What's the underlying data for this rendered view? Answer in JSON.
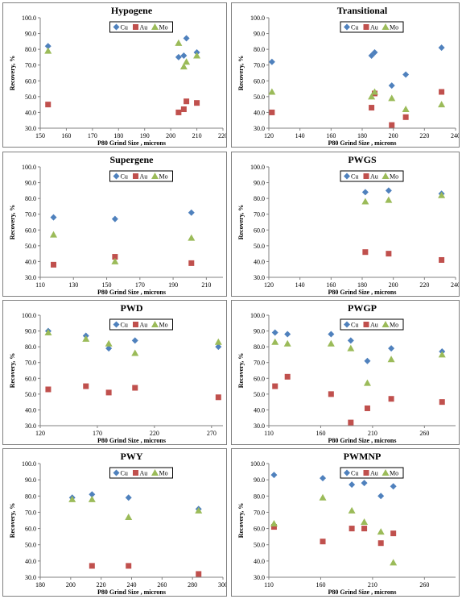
{
  "series_style": {
    "Cu": {
      "color": "#4f81bd",
      "marker": "diamond"
    },
    "Au": {
      "color": "#c0504d",
      "marker": "square"
    },
    "Mo": {
      "color": "#9bbb59",
      "marker": "triangle"
    }
  },
  "chart_data": [
    {
      "type": "scatter",
      "title": "Hypogene",
      "xlabel": "P80 Grind Size , microns",
      "ylabel": "Recovery, %",
      "xlim": [
        150,
        220
      ],
      "xticks": [
        150,
        160,
        170,
        180,
        190,
        200,
        210,
        220
      ],
      "ylim": [
        30,
        100
      ],
      "yticks": [
        30.0,
        40.0,
        50.0,
        60.0,
        70.0,
        80.0,
        90.0,
        100.0
      ],
      "legend": [
        "Cu",
        "Au",
        "Mo"
      ],
      "series": [
        {
          "name": "Cu",
          "points": [
            [
              153,
              82
            ],
            [
              203,
              75
            ],
            [
              205,
              76
            ],
            [
              206,
              87
            ],
            [
              210,
              78
            ]
          ]
        },
        {
          "name": "Au",
          "points": [
            [
              153,
              45
            ],
            [
              203,
              40
            ],
            [
              205,
              42
            ],
            [
              206,
              47
            ],
            [
              210,
              46
            ]
          ]
        },
        {
          "name": "Mo",
          "points": [
            [
              153,
              79
            ],
            [
              203,
              84
            ],
            [
              205,
              69
            ],
            [
              206,
              72
            ],
            [
              210,
              76
            ]
          ]
        }
      ]
    },
    {
      "type": "scatter",
      "title": "Transitional",
      "xlabel": "P80 Grind Size , microns",
      "ylabel": "Recovery, %",
      "xlim": [
        120,
        240
      ],
      "xticks": [
        120,
        140,
        160,
        180,
        200,
        220,
        240
      ],
      "ylim": [
        30,
        100
      ],
      "yticks": [
        30.0,
        40.0,
        50.0,
        60.0,
        70.0,
        80.0,
        90.0,
        100.0
      ],
      "legend": [
        "Cu",
        "Au",
        "Mo"
      ],
      "series": [
        {
          "name": "Cu",
          "points": [
            [
              122,
              72
            ],
            [
              186,
              76
            ],
            [
              188,
              78
            ],
            [
              199,
              57
            ],
            [
              208,
              64
            ],
            [
              231,
              81
            ]
          ]
        },
        {
          "name": "Au",
          "points": [
            [
              122,
              40
            ],
            [
              186,
              43
            ],
            [
              188,
              52
            ],
            [
              199,
              32
            ],
            [
              208,
              37
            ],
            [
              231,
              53
            ]
          ]
        },
        {
          "name": "Mo",
          "points": [
            [
              122,
              53
            ],
            [
              186,
              50
            ],
            [
              188,
              53
            ],
            [
              199,
              49
            ],
            [
              208,
              42
            ],
            [
              231,
              45
            ]
          ]
        }
      ]
    },
    {
      "type": "scatter",
      "title": "Supergene",
      "xlabel": "P80 Grind Size , microns",
      "ylabel": "Recovery, %",
      "xlim": [
        110,
        220
      ],
      "xticks": [
        110,
        130,
        150,
        170,
        190,
        210
      ],
      "ylim": [
        30,
        100
      ],
      "yticks": [
        30.0,
        40.0,
        50.0,
        60.0,
        70.0,
        80.0,
        90.0,
        100.0
      ],
      "legend": [
        "Cu",
        "Au",
        "Mo"
      ],
      "series": [
        {
          "name": "Cu",
          "points": [
            [
              118,
              68
            ],
            [
              155,
              67
            ],
            [
              201,
              71
            ]
          ]
        },
        {
          "name": "Au",
          "points": [
            [
              118,
              38
            ],
            [
              155,
              43
            ],
            [
              201,
              39
            ]
          ]
        },
        {
          "name": "Mo",
          "points": [
            [
              118,
              57
            ],
            [
              155,
              40
            ],
            [
              201,
              55
            ]
          ]
        }
      ]
    },
    {
      "type": "scatter",
      "title": "PWGS",
      "xlabel": "P80 Grind Size , microns",
      "ylabel": "Recovery, %",
      "xlim": [
        120,
        240
      ],
      "xticks": [
        120,
        140,
        160,
        180,
        200,
        220,
        240
      ],
      "ylim": [
        30,
        100
      ],
      "yticks": [
        30.0,
        40.0,
        50.0,
        60.0,
        70.0,
        80.0,
        90.0,
        100.0
      ],
      "legend": [
        "Cu",
        "Au",
        "Mo"
      ],
      "series": [
        {
          "name": "Cu",
          "points": [
            [
              182,
              84
            ],
            [
              197,
              85
            ],
            [
              231,
              83
            ]
          ]
        },
        {
          "name": "Au",
          "points": [
            [
              182,
              46
            ],
            [
              197,
              45
            ],
            [
              231,
              41
            ]
          ]
        },
        {
          "name": "Mo",
          "points": [
            [
              182,
              78
            ],
            [
              197,
              79
            ],
            [
              231,
              82
            ]
          ]
        }
      ]
    },
    {
      "type": "scatter",
      "title": "PWD",
      "xlabel": "P80 Grind Size , microns",
      "ylabel": "Recovery, %",
      "xlim": [
        120,
        280
      ],
      "xticks": [
        120,
        170,
        220,
        270
      ],
      "ylim": [
        30,
        100
      ],
      "yticks": [
        30.0,
        40.0,
        50.0,
        60.0,
        70.0,
        80.0,
        90.0,
        100.0
      ],
      "legend": [
        "Cu",
        "Au",
        "Mo"
      ],
      "series": [
        {
          "name": "Cu",
          "points": [
            [
              127,
              90
            ],
            [
              160,
              87
            ],
            [
              180,
              79
            ],
            [
              203,
              84
            ],
            [
              276,
              80
            ]
          ]
        },
        {
          "name": "Au",
          "points": [
            [
              127,
              53
            ],
            [
              160,
              55
            ],
            [
              180,
              51
            ],
            [
              203,
              54
            ],
            [
              276,
              48
            ]
          ]
        },
        {
          "name": "Mo",
          "points": [
            [
              127,
              89
            ],
            [
              160,
              85
            ],
            [
              180,
              82
            ],
            [
              203,
              76
            ],
            [
              276,
              83
            ]
          ]
        }
      ]
    },
    {
      "type": "scatter",
      "title": "PWGP",
      "xlabel": "P80 Grind Size , microns",
      "ylabel": "Recovery, %",
      "xlim": [
        110,
        290
      ],
      "xticks": [
        110,
        160,
        210,
        260
      ],
      "ylim": [
        30,
        100
      ],
      "yticks": [
        30.0,
        40.0,
        50.0,
        60.0,
        70.0,
        80.0,
        90.0,
        100.0
      ],
      "legend": [
        "Cu",
        "Au",
        "Mo"
      ],
      "series": [
        {
          "name": "Cu",
          "points": [
            [
              116,
              89
            ],
            [
              128,
              88
            ],
            [
              170,
              88
            ],
            [
              189,
              84
            ],
            [
              205,
              71
            ],
            [
              228,
              79
            ],
            [
              277,
              77
            ]
          ]
        },
        {
          "name": "Au",
          "points": [
            [
              116,
              55
            ],
            [
              128,
              61
            ],
            [
              170,
              50
            ],
            [
              189,
              32
            ],
            [
              205,
              41
            ],
            [
              228,
              47
            ],
            [
              277,
              45
            ]
          ]
        },
        {
          "name": "Mo",
          "points": [
            [
              116,
              83
            ],
            [
              128,
              82
            ],
            [
              170,
              82
            ],
            [
              189,
              79
            ],
            [
              205,
              57
            ],
            [
              228,
              72
            ],
            [
              277,
              75
            ]
          ]
        }
      ]
    },
    {
      "type": "scatter",
      "title": "PWY",
      "xlabel": "P80 Grind Size , microns",
      "ylabel": "Recovery, %",
      "xlim": [
        180,
        300
      ],
      "xticks": [
        180,
        200,
        220,
        240,
        260,
        280,
        300
      ],
      "ylim": [
        30,
        100
      ],
      "yticks": [
        30.0,
        40.0,
        50.0,
        60.0,
        70.0,
        80.0,
        90.0,
        100.0
      ],
      "legend": [
        "Cu",
        "Au",
        "Mo"
      ],
      "series": [
        {
          "name": "Cu",
          "points": [
            [
              201,
              79
            ],
            [
              214,
              81
            ],
            [
              238,
              79
            ],
            [
              284,
              72
            ]
          ]
        },
        {
          "name": "Au",
          "points": [
            [
              214,
              37
            ],
            [
              238,
              37
            ],
            [
              284,
              32
            ]
          ]
        },
        {
          "name": "Mo",
          "points": [
            [
              201,
              78
            ],
            [
              214,
              78
            ],
            [
              238,
              67
            ],
            [
              284,
              71
            ]
          ]
        }
      ]
    },
    {
      "type": "scatter",
      "title": "PWMNP",
      "xlabel": "P80 Grind Size , microns",
      "ylabel": "Recovery, %",
      "xlim": [
        110,
        290
      ],
      "xticks": [
        110,
        160,
        210,
        260
      ],
      "ylim": [
        30,
        100
      ],
      "yticks": [
        30.0,
        40.0,
        50.0,
        60.0,
        70.0,
        80.0,
        90.0,
        100.0
      ],
      "legend": [
        "Cu",
        "Au",
        "Mo"
      ],
      "series": [
        {
          "name": "Cu",
          "points": [
            [
              115,
              93
            ],
            [
              162,
              91
            ],
            [
              190,
              87
            ],
            [
              202,
              88
            ],
            [
              218,
              80
            ],
            [
              230,
              86
            ]
          ]
        },
        {
          "name": "Au",
          "points": [
            [
              115,
              61
            ],
            [
              162,
              52
            ],
            [
              190,
              60
            ],
            [
              202,
              60
            ],
            [
              218,
              51
            ],
            [
              230,
              57
            ]
          ]
        },
        {
          "name": "Mo",
          "points": [
            [
              115,
              63
            ],
            [
              162,
              79
            ],
            [
              190,
              71
            ],
            [
              202,
              64
            ],
            [
              218,
              58
            ],
            [
              230,
              39
            ]
          ]
        }
      ]
    }
  ]
}
